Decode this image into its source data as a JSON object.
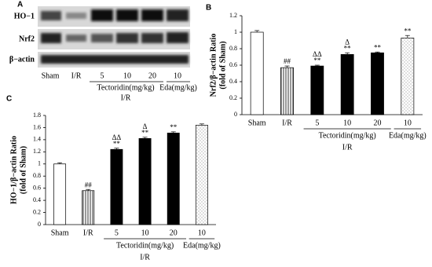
{
  "blot": {
    "panel_label": "A",
    "rows": [
      "HO−1",
      "Nrf2",
      "β−actin"
    ],
    "lanes": [
      "Sham",
      "I/R",
      "5",
      "10",
      "20",
      "10"
    ],
    "group_labels": [
      "Tectoridin(mg/kg)",
      "Eda(mg/kg)"
    ],
    "xlabel": "I/R"
  },
  "chart_data": [
    {
      "type": "bar",
      "panel_label": "B",
      "ylabel": [
        "Nrf2/β−actin Ratio",
        "(fold of Sham)"
      ],
      "categories": [
        "Sham",
        "I/R",
        "5",
        "10",
        "20",
        "10"
      ],
      "values": [
        1.0,
        0.57,
        0.59,
        0.73,
        0.75,
        0.93
      ],
      "errors": [
        0.02,
        0.02,
        0.01,
        0.02,
        0.01,
        0.03
      ],
      "annotations": [
        [],
        [
          "##"
        ],
        [
          "ΔΔ",
          "**"
        ],
        [
          "Δ",
          "**"
        ],
        [
          "**"
        ],
        [
          "**"
        ]
      ],
      "fills": [
        "white",
        "vertical",
        "black",
        "black",
        "black",
        "dots"
      ],
      "group_labels": [
        "Tectoridin(mg/kg)",
        "Eda(mg/kg)"
      ],
      "xlabel": "I/R",
      "ylim": [
        0,
        1.2
      ],
      "yticks": [
        0,
        0.2,
        0.4,
        0.6,
        0.8,
        1,
        1.2
      ]
    },
    {
      "type": "bar",
      "panel_label": "C",
      "ylabel": [
        "HO−1/β−actin Ratio",
        "(fold of Sham)"
      ],
      "categories": [
        "Sham",
        "I/R",
        "5",
        "10",
        "20",
        "10"
      ],
      "values": [
        1.0,
        0.56,
        1.24,
        1.42,
        1.51,
        1.64
      ],
      "errors": [
        0.02,
        0.02,
        0.02,
        0.02,
        0.02,
        0.02
      ],
      "annotations": [
        [],
        [
          "##"
        ],
        [
          "ΔΔ",
          "**"
        ],
        [
          "Δ",
          "**"
        ],
        [
          "**"
        ],
        []
      ],
      "fills": [
        "white",
        "vertical",
        "black",
        "black",
        "black",
        "dots"
      ],
      "group_labels": [
        "Tectoridin(mg/kg)",
        "Eda(mg/kg)"
      ],
      "xlabel": "I/R",
      "ylim": [
        0,
        1.8
      ],
      "yticks": [
        0,
        0.2,
        0.4,
        0.6,
        0.8,
        1,
        1.2,
        1.4,
        1.6,
        1.8
      ]
    }
  ]
}
